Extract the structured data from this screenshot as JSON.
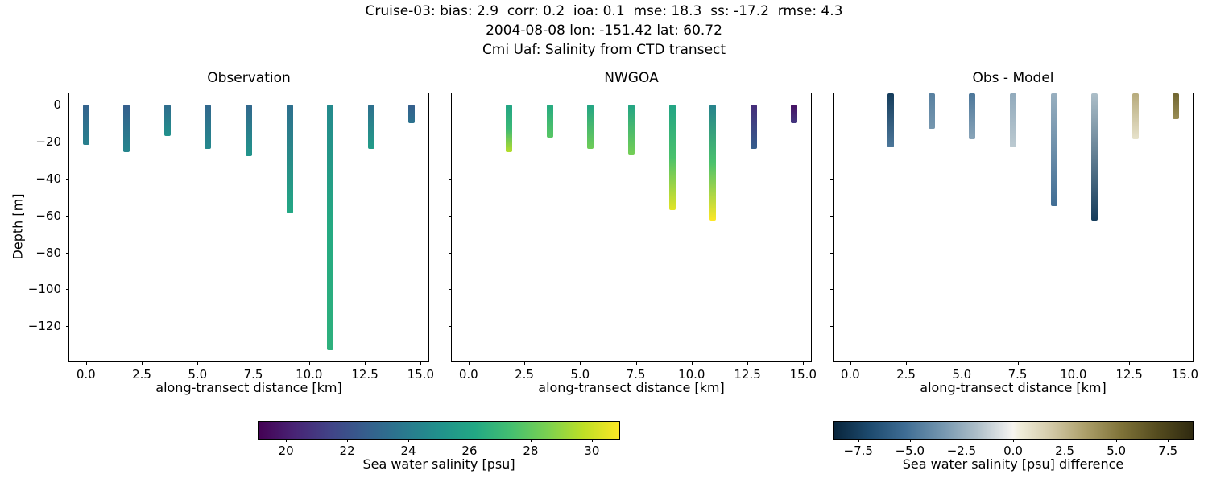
{
  "chart_data": {
    "type": "heatmap",
    "suptitle_lines": [
      "Cruise-03: bias: 2.9  corr: 0.2  ioa: 0.1  mse: 18.3  ss: -17.2  rmse: 4.3",
      "2004-08-08 lon: -151.42 lat: 60.72",
      "Cmi Uaf: Salinity from CTD transect"
    ],
    "ylabel": "Depth [m]",
    "colormaps": {
      "salinity": {
        "vmin": 19.1,
        "vmax": 30.9,
        "anchors": [
          [
            0.0,
            "#440154"
          ],
          [
            0.1,
            "#482475"
          ],
          [
            0.2,
            "#414487"
          ],
          [
            0.3,
            "#355f8d"
          ],
          [
            0.4,
            "#2a788e"
          ],
          [
            0.5,
            "#21918c"
          ],
          [
            0.6,
            "#22a884"
          ],
          [
            0.7,
            "#44bf70"
          ],
          [
            0.8,
            "#7ad151"
          ],
          [
            0.9,
            "#bddf26"
          ],
          [
            1.0,
            "#fde725"
          ]
        ]
      },
      "difference": {
        "vmin": -8.7,
        "vmax": 8.7,
        "anchors": [
          [
            0.0,
            "#08243a"
          ],
          [
            0.1,
            "#1d4a6e"
          ],
          [
            0.2,
            "#3f6d94"
          ],
          [
            0.3,
            "#7395ae"
          ],
          [
            0.4,
            "#aebfc9"
          ],
          [
            0.48,
            "#e8eaea"
          ],
          [
            0.5,
            "#f7f5f0"
          ],
          [
            0.52,
            "#f0edda"
          ],
          [
            0.6,
            "#d5ccab"
          ],
          [
            0.7,
            "#ac9f6a"
          ],
          [
            0.8,
            "#7f7339"
          ],
          [
            0.9,
            "#554c1f"
          ],
          [
            1.0,
            "#2f2a10"
          ]
        ]
      }
    },
    "panels": [
      {
        "title": "Observation",
        "xlabel": "along-transect distance [km]",
        "xlim": [
          -0.75,
          15.35
        ],
        "ylim": [
          -139,
          6
        ],
        "xticks": [
          0.0,
          2.5,
          5.0,
          7.5,
          10.0,
          12.5,
          15.0
        ],
        "xtick_labels": [
          "0.0",
          "2.5",
          "5.0",
          "7.5",
          "10.0",
          "12.5",
          "15.0"
        ],
        "yticks": [
          0,
          -20,
          -40,
          -60,
          -80,
          -100,
          -120
        ],
        "ytick_labels": [
          "0",
          "−20",
          "−40",
          "−60",
          "−80",
          "−100",
          "−120"
        ],
        "show_ytick_labels": true,
        "bars_start_at_axis_top": false,
        "colormap": "salinity",
        "casts": [
          {
            "x": 0.0,
            "depth": -22,
            "values": [
              22.8,
              24.2
            ]
          },
          {
            "x": 1.825,
            "depth": -26,
            "values": [
              22.6,
              24.5
            ]
          },
          {
            "x": 3.65,
            "depth": -17,
            "values": [
              23.2,
              25.0
            ]
          },
          {
            "x": 5.475,
            "depth": -24,
            "values": [
              23.0,
              24.6
            ]
          },
          {
            "x": 7.3,
            "depth": -28,
            "values": [
              23.0,
              25.2
            ]
          },
          {
            "x": 9.125,
            "depth": -59,
            "values": [
              23.4,
              26.2
            ]
          },
          {
            "x": 10.95,
            "depth": -133,
            "values": [
              24.6,
              26.3,
              26.6
            ]
          },
          {
            "x": 12.775,
            "depth": -24,
            "values": [
              23.4,
              25.6
            ]
          },
          {
            "x": 14.6,
            "depth": -10,
            "values": [
              22.6,
              23.6
            ]
          }
        ]
      },
      {
        "title": "NWGOA",
        "xlabel": "along-transect distance [km]",
        "xlim": [
          -0.75,
          15.35
        ],
        "ylim": [
          -139,
          6
        ],
        "xticks": [
          0.0,
          2.5,
          5.0,
          7.5,
          10.0,
          12.5,
          15.0
        ],
        "xtick_labels": [
          "0.0",
          "2.5",
          "5.0",
          "7.5",
          "10.0",
          "12.5",
          "15.0"
        ],
        "yticks": [
          0,
          -20,
          -40,
          -60,
          -80,
          -100,
          -120
        ],
        "ytick_labels": [
          "0",
          "−20",
          "−40",
          "−60",
          "−80",
          "−100",
          "−120"
        ],
        "show_ytick_labels": false,
        "bars_start_at_axis_top": false,
        "colormap": "salinity",
        "casts": [
          {
            "x": 1.825,
            "depth": -26,
            "values": [
              26.0,
              27.0,
              29.6
            ]
          },
          {
            "x": 3.65,
            "depth": -18,
            "values": [
              26.3,
              27.8
            ]
          },
          {
            "x": 5.475,
            "depth": -24,
            "values": [
              26.0,
              28.3
            ]
          },
          {
            "x": 7.3,
            "depth": -27,
            "values": [
              26.0,
              28.4
            ]
          },
          {
            "x": 9.125,
            "depth": -57,
            "values": [
              26.0,
              27.5,
              30.4
            ]
          },
          {
            "x": 10.95,
            "depth": -63,
            "values": [
              24.3,
              27.5,
              30.9
            ]
          },
          {
            "x": 12.775,
            "depth": -24,
            "values": [
              20.6,
              22.6
            ]
          },
          {
            "x": 14.6,
            "depth": -10,
            "values": [
              19.6,
              21.0
            ]
          }
        ]
      },
      {
        "title": "Obs - Model",
        "xlabel": "along-transect distance [km]",
        "xlim": [
          -0.75,
          15.35
        ],
        "ylim": [
          -139,
          6
        ],
        "xticks": [
          0.0,
          2.5,
          5.0,
          7.5,
          10.0,
          12.5,
          15.0
        ],
        "xtick_labels": [
          "0.0",
          "2.5",
          "5.0",
          "7.5",
          "10.0",
          "12.5",
          "15.0"
        ],
        "yticks": [
          0,
          -20,
          -40,
          -60,
          -80,
          -100,
          -120
        ],
        "ytick_labels": [
          "0",
          "−20",
          "−40",
          "−60",
          "−80",
          "−100",
          "−120"
        ],
        "show_ytick_labels": false,
        "bars_start_at_axis_top": true,
        "colormap": "difference",
        "casts": [
          {
            "x": 1.825,
            "depth": -23,
            "values": [
              -7.6,
              -4.8
            ]
          },
          {
            "x": 3.65,
            "depth": -13,
            "values": [
              -4.4,
              -3.4
            ]
          },
          {
            "x": 5.475,
            "depth": -19,
            "values": [
              -4.8,
              -2.8
            ]
          },
          {
            "x": 7.3,
            "depth": -23,
            "values": [
              -2.6,
              -1.4
            ]
          },
          {
            "x": 9.125,
            "depth": -55,
            "values": [
              -2.4,
              -5.2
            ]
          },
          {
            "x": 10.95,
            "depth": -63,
            "values": [
              -1.8,
              -7.6
            ]
          },
          {
            "x": 12.775,
            "depth": -19,
            "values": [
              3.0,
              0.8
            ]
          },
          {
            "x": 14.6,
            "depth": -8,
            "values": [
              5.8,
              4.2
            ]
          }
        ]
      }
    ],
    "colorbars": [
      {
        "colormap": "salinity",
        "label": "Sea water salinity [psu]",
        "ticks": [
          20,
          22,
          24,
          26,
          28,
          30
        ],
        "tick_labels": [
          "20",
          "22",
          "24",
          "26",
          "28",
          "30"
        ]
      },
      {
        "colormap": "difference",
        "label": "Sea water salinity [psu] difference",
        "ticks": [
          -7.5,
          -5.0,
          -2.5,
          0.0,
          2.5,
          5.0,
          7.5
        ],
        "tick_labels": [
          "−7.5",
          "−5.0",
          "−2.5",
          "0.0",
          "2.5",
          "5.0",
          "7.5"
        ]
      }
    ]
  }
}
